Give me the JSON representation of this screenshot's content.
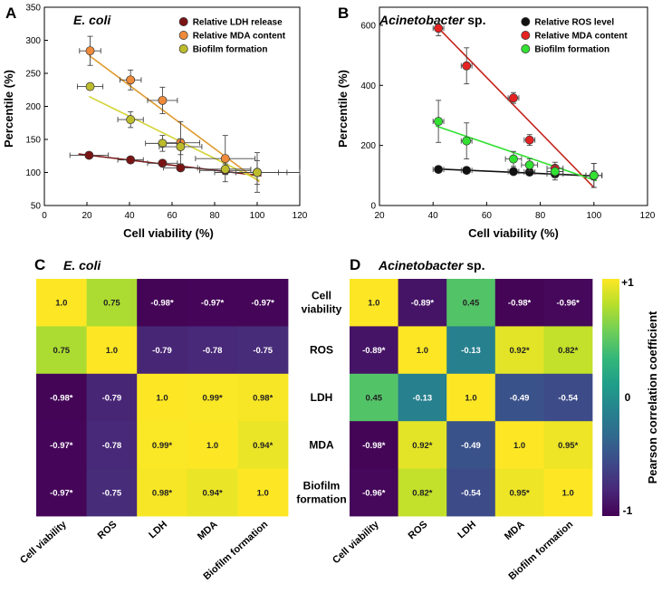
{
  "panel_letters": [
    "A",
    "B",
    "C",
    "D"
  ],
  "colors": {
    "ldh": "#7a1414",
    "mda_a": "#ef8a3a",
    "biofilm_a": "#bcbc2c",
    "ros": "#111111",
    "mda_b": "#e52222",
    "biofilm_b": "#33e133",
    "fit_ldh": "#7a1414",
    "fit_mda_a": "#e09a2e",
    "fit_biofilm_a": "#d4d43a",
    "fit_ros": "#111111",
    "fit_mda_b": "#c4241c",
    "fit_biofilm_b": "#33e133",
    "err": "#444444"
  },
  "chart_data": [
    {
      "panel": "A",
      "type": "scatter",
      "title": "E. coli",
      "xlabel": "Cell viability (%)",
      "ylabel": "Percentile (%)",
      "xlim": [
        0,
        120
      ],
      "ylim": [
        50,
        350
      ],
      "xticks": [
        0,
        20,
        40,
        60,
        80,
        100,
        120
      ],
      "yticks": [
        50,
        100,
        150,
        200,
        250,
        300,
        350
      ],
      "legend_position": "top-right",
      "series": [
        {
          "name": "Relative LDH release",
          "color_key": "ldh",
          "points": [
            {
              "x": 21,
              "y": 126,
              "xerr": 9,
              "yerr": 3
            },
            {
              "x": 40.5,
              "y": 119,
              "xerr": 6,
              "yerr": 3
            },
            {
              "x": 55.5,
              "y": 114,
              "xerr": 7,
              "yerr": 4
            },
            {
              "x": 64,
              "y": 107,
              "xerr": 8,
              "yerr": 5
            },
            {
              "x": 85,
              "y": 103,
              "xerr": 12,
              "yerr": 5
            },
            {
              "x": 100,
              "y": 100,
              "xerr": 20,
              "yerr": 4
            }
          ],
          "fit": [
            [
              16,
              128
            ],
            [
              102,
              95
            ]
          ]
        },
        {
          "name": "Relative MDA content",
          "color_key": "mda_a",
          "points": [
            {
              "x": 21.5,
              "y": 284,
              "xerr": 5,
              "yerr": 22
            },
            {
              "x": 40.5,
              "y": 240,
              "xerr": 5,
              "yerr": 15
            },
            {
              "x": 55.5,
              "y": 209,
              "xerr": 7,
              "yerr": 20
            },
            {
              "x": 64,
              "y": 145,
              "xerr": 9,
              "yerr": 32
            },
            {
              "x": 85,
              "y": 121,
              "xerr": 14,
              "yerr": 35
            },
            {
              "x": 100,
              "y": 100,
              "xerr": 14,
              "yerr": 30
            }
          ],
          "fit": [
            [
              21,
              277
            ],
            [
              101,
              86
            ]
          ]
        },
        {
          "name": "Biofilm formation",
          "color_key": "biofilm_a",
          "points": [
            {
              "x": 21.5,
              "y": 230,
              "xerr": 6,
              "yerr": 4
            },
            {
              "x": 40.5,
              "y": 180,
              "xerr": 6,
              "yerr": 12
            },
            {
              "x": 55.5,
              "y": 144,
              "xerr": 8,
              "yerr": 12
            },
            {
              "x": 64,
              "y": 139,
              "xerr": 10,
              "yerr": 12
            },
            {
              "x": 85,
              "y": 105,
              "xerr": 12,
              "yerr": 8
            },
            {
              "x": 100,
              "y": 100,
              "xerr": 10,
              "yerr": 18
            }
          ],
          "fit": [
            [
              21,
              215
            ],
            [
              101,
              88
            ]
          ]
        }
      ]
    },
    {
      "panel": "B",
      "type": "scatter",
      "title": "Acinetobacter",
      "title_suffix": "sp.",
      "xlabel": "Cell viability (%)",
      "ylabel": "Percentile (%)",
      "xlim": [
        20,
        120
      ],
      "ylim": [
        0,
        660
      ],
      "xticks": [
        20,
        40,
        60,
        80,
        100,
        120
      ],
      "yticks": [
        0,
        200,
        400,
        600
      ],
      "legend_position": "top-right",
      "series": [
        {
          "name": "Relative ROS level",
          "color_key": "ros",
          "points": [
            {
              "x": 42,
              "y": 120,
              "xerr": 2,
              "yerr": 6
            },
            {
              "x": 52.5,
              "y": 117,
              "xerr": 2,
              "yerr": 6
            },
            {
              "x": 70,
              "y": 113,
              "xerr": 2,
              "yerr": 6
            },
            {
              "x": 76,
              "y": 111,
              "xerr": 2,
              "yerr": 10
            },
            {
              "x": 85.5,
              "y": 105,
              "xerr": 3,
              "yerr": 20
            },
            {
              "x": 100,
              "y": 100,
              "xerr": 3,
              "yerr": 15
            }
          ],
          "fit": [
            [
              41,
              122
            ],
            [
              101,
              98
            ]
          ]
        },
        {
          "name": "Relative MDA content",
          "color_key": "mda_b",
          "points": [
            {
              "x": 42,
              "y": 590,
              "xerr": 2,
              "yerr": 25
            },
            {
              "x": 52.5,
              "y": 465,
              "xerr": 2,
              "yerr": 60
            },
            {
              "x": 70,
              "y": 358,
              "xerr": 2,
              "yerr": 18
            },
            {
              "x": 76,
              "y": 218,
              "xerr": 2,
              "yerr": 18
            },
            {
              "x": 85.5,
              "y": 124,
              "xerr": 3,
              "yerr": 20
            },
            {
              "x": 100,
              "y": 100,
              "xerr": 3,
              "yerr": 40
            }
          ],
          "fit": [
            [
              41,
              600
            ],
            [
              100,
              60
            ]
          ]
        },
        {
          "name": "Biofilm formation",
          "color_key": "biofilm_b",
          "points": [
            {
              "x": 42,
              "y": 280,
              "xerr": 2,
              "yerr": 70
            },
            {
              "x": 52.5,
              "y": 215,
              "xerr": 2,
              "yerr": 60
            },
            {
              "x": 70,
              "y": 155,
              "xerr": 3,
              "yerr": 25
            },
            {
              "x": 76,
              "y": 135,
              "xerr": 3,
              "yerr": 20
            },
            {
              "x": 85.5,
              "y": 113,
              "xerr": 3,
              "yerr": 20
            },
            {
              "x": 100,
              "y": 100,
              "xerr": 3,
              "yerr": 40
            }
          ],
          "fit": [
            [
              41,
              265
            ],
            [
              101,
              82
            ]
          ]
        }
      ]
    },
    {
      "panel": "C",
      "type": "heatmap",
      "title": "E. coli",
      "labels": [
        "Cell viability",
        "ROS",
        "LDH",
        "MDA",
        "Biofilm formation"
      ],
      "row_labels": [
        "Cell viability",
        "ROS",
        "LDH",
        "MDA",
        "Biofilm formation"
      ],
      "row_labels_display": [
        [
          "Cell",
          "viability"
        ],
        [
          "ROS"
        ],
        [
          "LDH"
        ],
        [
          "MDA"
        ],
        [
          "Biofilm",
          "formation"
        ]
      ],
      "values": [
        [
          1.0,
          0.75,
          -0.98,
          -0.97,
          -0.97
        ],
        [
          0.75,
          1.0,
          -0.79,
          -0.78,
          -0.75
        ],
        [
          -0.98,
          -0.79,
          1.0,
          0.99,
          0.98
        ],
        [
          -0.97,
          -0.78,
          0.99,
          1.0,
          0.94
        ],
        [
          -0.97,
          -0.75,
          0.98,
          0.94,
          1.0
        ]
      ],
      "cell_text": [
        [
          "1.0",
          "0.75",
          "-0.98*",
          "-0.97*",
          "-0.97*"
        ],
        [
          "0.75",
          "1.0",
          "-0.79",
          "-0.78",
          "-0.75"
        ],
        [
          "-0.98*",
          "-0.79",
          "1.0",
          "0.99*",
          "0.98*"
        ],
        [
          "-0.97*",
          "-0.78",
          "0.99*",
          "1.0",
          "0.94*"
        ],
        [
          "-0.97*",
          "-0.75",
          "0.98*",
          "0.94*",
          "1.0"
        ]
      ]
    },
    {
      "panel": "D",
      "type": "heatmap",
      "title": "Acinetobacter",
      "title_suffix": "sp.",
      "labels": [
        "Cell viability",
        "ROS",
        "LDH",
        "MDA",
        "Biofilm formation"
      ],
      "values": [
        [
          1.0,
          -0.89,
          0.45,
          -0.98,
          -0.96
        ],
        [
          -0.89,
          1.0,
          -0.13,
          0.92,
          0.82
        ],
        [
          0.45,
          -0.13,
          1.0,
          -0.49,
          -0.54
        ],
        [
          -0.98,
          0.92,
          -0.49,
          1.0,
          0.95
        ],
        [
          -0.96,
          0.82,
          -0.54,
          0.95,
          1.0
        ]
      ],
      "cell_text": [
        [
          "1.0",
          "-0.89*",
          "0.45",
          "-0.98*",
          "-0.96*"
        ],
        [
          "-0.89*",
          "1.0",
          "-0.13",
          "0.92*",
          "0.82*"
        ],
        [
          "0.45",
          "-0.13",
          "1.0",
          "-0.49",
          "-0.54"
        ],
        [
          "-0.98*",
          "0.92*",
          "-0.49",
          "1.0",
          "0.95*"
        ],
        [
          "-0.96*",
          "0.82*",
          "-0.54",
          "0.95*",
          "1.0"
        ]
      ],
      "colorbar": {
        "label": "Pearson correlation coefficient",
        "range": [
          -1,
          1
        ],
        "tick_labels": [
          "+1",
          "0",
          "-1"
        ],
        "tick_values": [
          1,
          0,
          -1
        ],
        "palette": [
          "#440154",
          "#482878",
          "#3e4989",
          "#31688e",
          "#26828e",
          "#1f9e89",
          "#35b779",
          "#6ece58",
          "#b5de2b",
          "#fde725"
        ]
      }
    }
  ]
}
